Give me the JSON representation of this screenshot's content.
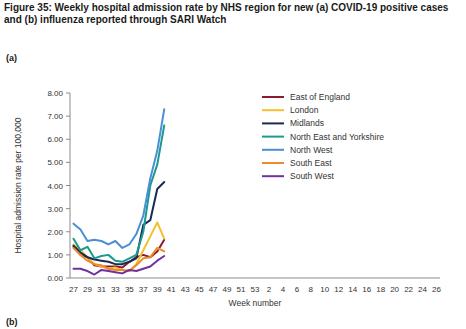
{
  "chart_data": {
    "type": "line",
    "title": "Figure 35: Weekly hospital admission rate by NHS region for new (a) COVID-19 positive cases and (b) influenza reported through SARI Watch",
    "annotations": [
      "(a)",
      "(b)"
    ],
    "x_label": "Week number",
    "y_label": "Hospital admission rate per 100,000",
    "categories": [
      "27",
      null,
      "29",
      null,
      "31",
      null,
      "33",
      null,
      "35",
      null,
      "37",
      null,
      "39",
      null,
      "41",
      null,
      "43",
      null,
      "45",
      null,
      "47",
      null,
      "49",
      null,
      "51",
      null,
      "53",
      null,
      "2",
      null,
      "4",
      null,
      "6",
      null,
      "8",
      null,
      "10",
      null,
      "12",
      null,
      "14",
      null,
      "16",
      null,
      "18",
      null,
      "20",
      null,
      "22",
      null,
      "24",
      null,
      "26"
    ],
    "series": [
      {
        "name": "East of England",
        "color": "#8b1a2e",
        "values": [
          1.35,
          1.0,
          0.9,
          0.55,
          0.5,
          0.5,
          0.5,
          0.45,
          0.7,
          0.9,
          1.0,
          0.9,
          1.15,
          1.65,
          null,
          null,
          null,
          null,
          null,
          null,
          null,
          null,
          null,
          null,
          null,
          null,
          null,
          null,
          null,
          null,
          null,
          null,
          null,
          null,
          null,
          null,
          null,
          null,
          null,
          null,
          null,
          null,
          null,
          null,
          null,
          null,
          null,
          null,
          null,
          null,
          null,
          null,
          null
        ]
      },
      {
        "name": "London",
        "color": "#f2c12e",
        "values": [
          1.45,
          1.2,
          0.9,
          0.6,
          0.5,
          0.4,
          0.45,
          0.35,
          0.3,
          0.6,
          1.2,
          1.8,
          2.4,
          1.7,
          null,
          null,
          null,
          null,
          null,
          null,
          null,
          null,
          null,
          null,
          null,
          null,
          null,
          null,
          null,
          null,
          null,
          null,
          null,
          null,
          null,
          null,
          null,
          null,
          null,
          null,
          null,
          null,
          null,
          null,
          null,
          null,
          null,
          null,
          null,
          null,
          null,
          null,
          null
        ]
      },
      {
        "name": "Midlands",
        "color": "#1b2a55",
        "values": [
          1.4,
          1.1,
          0.9,
          0.8,
          0.75,
          0.7,
          0.6,
          0.6,
          0.7,
          0.85,
          2.3,
          2.5,
          3.85,
          4.15,
          null,
          null,
          null,
          null,
          null,
          null,
          null,
          null,
          null,
          null,
          null,
          null,
          null,
          null,
          null,
          null,
          null,
          null,
          null,
          null,
          null,
          null,
          null,
          null,
          null,
          null,
          null,
          null,
          null,
          null,
          null,
          null,
          null,
          null,
          null,
          null,
          null,
          null,
          null
        ]
      },
      {
        "name": "North East and Yorkshire",
        "color": "#1a9a8c",
        "values": [
          1.7,
          1.2,
          1.35,
          0.85,
          0.95,
          1.0,
          0.75,
          0.7,
          0.85,
          1.0,
          2.0,
          4.0,
          4.9,
          6.6,
          null,
          null,
          null,
          null,
          null,
          null,
          null,
          null,
          null,
          null,
          null,
          null,
          null,
          null,
          null,
          null,
          null,
          null,
          null,
          null,
          null,
          null,
          null,
          null,
          null,
          null,
          null,
          null,
          null,
          null,
          null,
          null,
          null,
          null,
          null,
          null,
          null,
          null,
          null
        ]
      },
      {
        "name": "North West",
        "color": "#4a8fd6",
        "values": [
          2.35,
          2.1,
          1.6,
          1.65,
          1.6,
          1.45,
          1.6,
          1.3,
          1.45,
          1.9,
          2.7,
          4.3,
          5.5,
          7.3,
          null,
          null,
          null,
          null,
          null,
          null,
          null,
          null,
          null,
          null,
          null,
          null,
          null,
          null,
          null,
          null,
          null,
          null,
          null,
          null,
          null,
          null,
          null,
          null,
          null,
          null,
          null,
          null,
          null,
          null,
          null,
          null,
          null,
          null,
          null,
          null,
          null,
          null,
          null
        ]
      },
      {
        "name": "South East",
        "color": "#ef8a2a",
        "values": [
          1.3,
          1.0,
          0.75,
          0.6,
          0.55,
          0.4,
          0.35,
          0.35,
          0.3,
          0.55,
          0.85,
          0.9,
          1.3,
          1.15,
          null,
          null,
          null,
          null,
          null,
          null,
          null,
          null,
          null,
          null,
          null,
          null,
          null,
          null,
          null,
          null,
          null,
          null,
          null,
          null,
          null,
          null,
          null,
          null,
          null,
          null,
          null,
          null,
          null,
          null,
          null,
          null,
          null,
          null,
          null,
          null,
          null,
          null,
          null
        ]
      },
      {
        "name": "South West",
        "color": "#7030a0",
        "values": [
          0.4,
          0.4,
          0.3,
          0.15,
          0.35,
          0.3,
          0.25,
          0.2,
          0.35,
          0.3,
          0.4,
          0.5,
          0.75,
          0.95,
          null,
          null,
          null,
          null,
          null,
          null,
          null,
          null,
          null,
          null,
          null,
          null,
          null,
          null,
          null,
          null,
          null,
          null,
          null,
          null,
          null,
          null,
          null,
          null,
          null,
          null,
          null,
          null,
          null,
          null,
          null,
          null,
          null,
          null,
          null,
          null,
          null,
          null,
          null
        ]
      }
    ],
    "ylim": [
      0,
      8
    ],
    "yticks": [
      {
        "value": 0,
        "label": "0.00"
      },
      {
        "value": 1,
        "label": "1.00"
      },
      {
        "value": 2,
        "label": "2.00"
      },
      {
        "value": 3,
        "label": "3.00"
      },
      {
        "value": 4,
        "label": "4.00"
      },
      {
        "value": 5,
        "label": "5.00"
      },
      {
        "value": 6,
        "label": "6.00"
      },
      {
        "value": 7,
        "label": "7.00"
      },
      {
        "value": 8,
        "label": "8.00"
      }
    ],
    "grid": false,
    "legend": "right"
  }
}
